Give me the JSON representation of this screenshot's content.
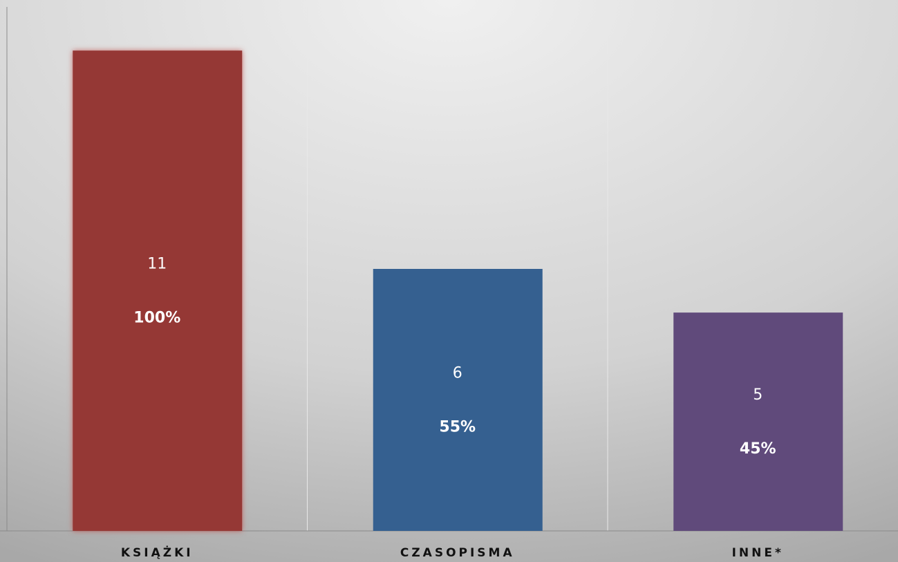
{
  "chart_data": {
    "type": "bar",
    "categories": [
      "KSIĄŻKI",
      "CZASOPISMA",
      "INNE*"
    ],
    "values": [
      11,
      6,
      5
    ],
    "percent_labels": [
      "100%",
      "55%",
      "45%"
    ],
    "colors": [
      "#953735",
      "#356090",
      "#604a7b"
    ],
    "ylim": [
      0,
      12
    ],
    "grid": true
  }
}
